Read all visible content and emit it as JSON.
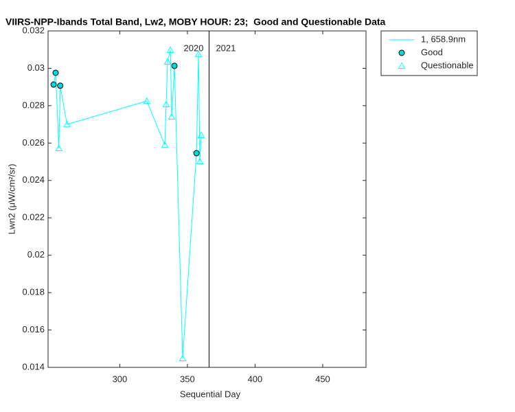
{
  "chart_data": {
    "type": "line",
    "title": "VIIRS-NPP-Ibands Total Band, Lw2, MOBY HOUR: 23;  Good and Questionable Data",
    "x_label": "Sequential Day",
    "y_label": "Lwn2 (μW/cm²/sr)",
    "xlim": [
      247,
      482
    ],
    "xticks": [
      300,
      350,
      400,
      450
    ],
    "ylim": [
      0.014,
      0.032
    ],
    "yticks": [
      0.014,
      0.016,
      0.018,
      0.02,
      0.022,
      0.024,
      0.026,
      0.028,
      0.03,
      0.032
    ],
    "grid": false,
    "legend": "outside-right",
    "year_boundary": 366,
    "annotations": [
      "2020",
      "2021"
    ],
    "series": [
      {
        "name": "1, 658.9nm",
        "color": "#00ffff",
        "marker": "none",
        "x": [
          251.1,
          252.6,
          255,
          256,
          261,
          320,
          333.3,
          334.3,
          335.3,
          337.4,
          338.4,
          340.4,
          346.5,
          356.7,
          358.2,
          359.2,
          360.2
        ],
        "values": [
          0.02913,
          0.02976,
          0.02572,
          0.02907,
          0.027,
          0.02825,
          0.0259,
          0.02807,
          0.03035,
          0.03097,
          0.02741,
          0.03013,
          0.01448,
          0.02546,
          0.03075,
          0.02502,
          0.02642
        ]
      },
      {
        "name": "Good",
        "color": "#00d8d8",
        "marker": "circle",
        "x": [
          251.1,
          252.6,
          256,
          340.4,
          356.7
        ],
        "values": [
          0.02913,
          0.02976,
          0.02907,
          0.03013,
          0.02546
        ]
      },
      {
        "name": "Questionable",
        "color": "#00ffff",
        "marker": "triangle",
        "x": [
          255,
          261,
          320,
          333.3,
          334.3,
          335.3,
          337.4,
          338.4,
          346.5,
          358.2,
          359.2,
          360.2
        ],
        "values": [
          0.02572,
          0.027,
          0.02825,
          0.0259,
          0.02807,
          0.03035,
          0.03097,
          0.02741,
          0.01448,
          0.03075,
          0.02502,
          0.02642
        ]
      }
    ]
  }
}
